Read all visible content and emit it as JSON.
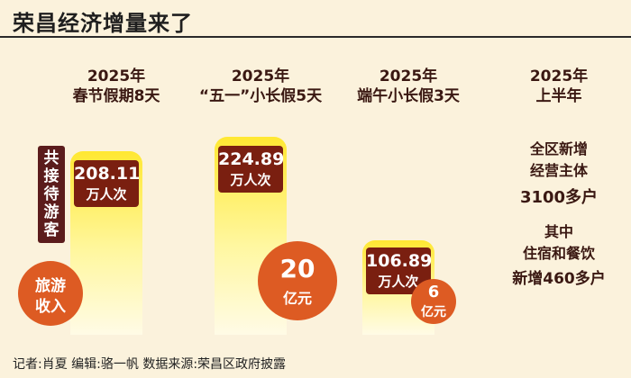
{
  "title": "荣昌经济增量来了",
  "chart_data": {
    "type": "bar",
    "title": "荣昌经济增量来了",
    "categories": [
      "2025年 春节假期8天",
      "2025年 “五一”小长假5天",
      "2025年 端午小长假3天"
    ],
    "series": [
      {
        "name": "共接待游客（万人次）",
        "values": [
          208.11,
          224.89,
          106.89
        ]
      },
      {
        "name": "旅游收入（亿元）",
        "values": [
          null,
          20,
          6
        ]
      }
    ]
  },
  "columns": [
    {
      "year": "2025年",
      "label": "春节假期8天",
      "visitors": "208.11",
      "unit": "万人次"
    },
    {
      "year": "2025年",
      "label": "“五一”小长假5天",
      "visitors": "224.89",
      "unit": "万人次",
      "income": "20",
      "income_unit": "亿元"
    },
    {
      "year": "2025年",
      "label": "端午小长假3天",
      "visitors": "106.89",
      "unit": "万人次",
      "income": "6",
      "income_unit": "亿元"
    }
  ],
  "tags": {
    "visitors_tag": "共接待游客",
    "income_tag_line1": "旅游",
    "income_tag_line2": "收入"
  },
  "half_year": {
    "year": "2025年",
    "label": "上半年",
    "line1": "全区新增",
    "line2": "经营主体",
    "line3": "3100多户",
    "line4": "其中",
    "line5": "住宿和餐饮",
    "line6": "新增460多户"
  },
  "footer": "记者:肖夏   编辑:骆一帆   数据来源:荣昌区政府披露"
}
